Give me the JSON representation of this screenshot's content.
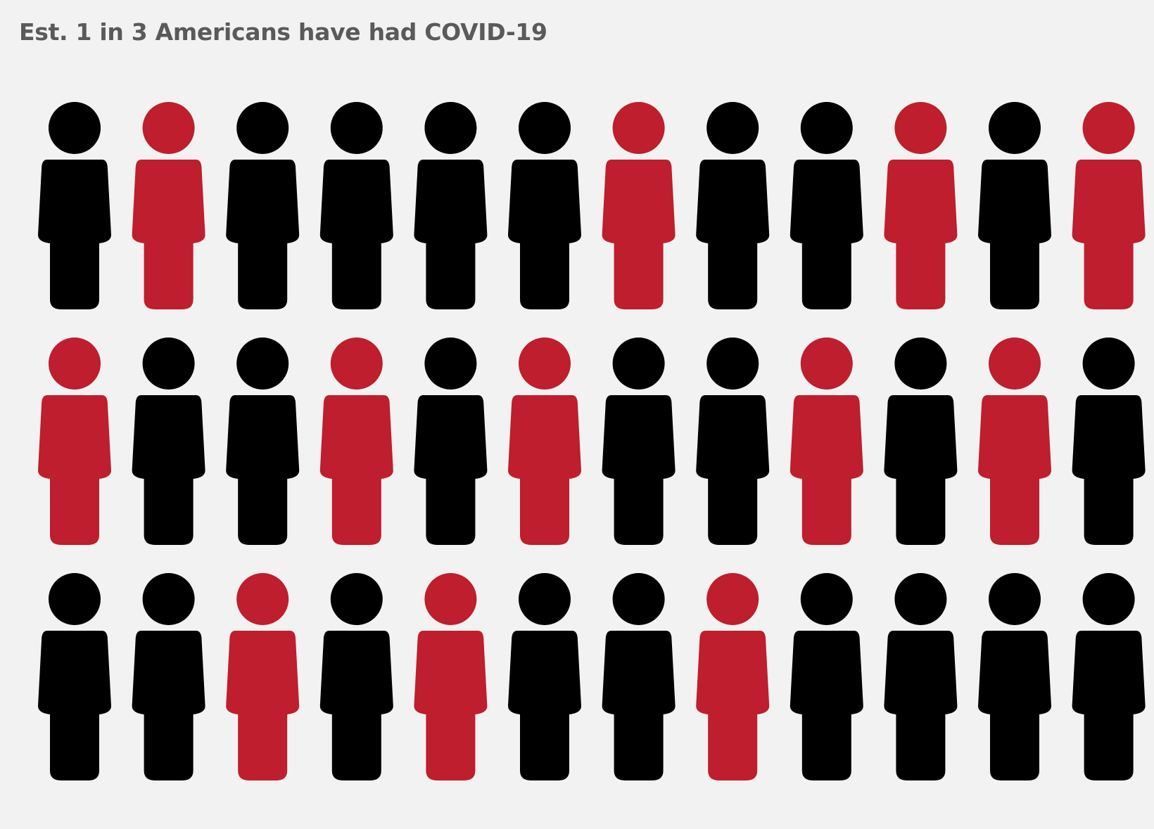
{
  "title": "Est. 1 in 3 Americans have had COVID-19",
  "colors": {
    "had_covid": "#be1e2d",
    "not_had_covid": "#000000",
    "background": "#f2f2f2"
  },
  "chart_data": {
    "type": "pictogram",
    "icon": "person-icon",
    "title": "Est. 1 in 3 Americans have had COVID-19",
    "rows": 3,
    "columns": 12,
    "total": 36,
    "highlighted_count": 12,
    "grid": [
      [
        0,
        1,
        0,
        0,
        0,
        0,
        1,
        0,
        0,
        1,
        0,
        1
      ],
      [
        1,
        0,
        0,
        1,
        0,
        1,
        0,
        0,
        1,
        0,
        1,
        0
      ],
      [
        0,
        0,
        1,
        0,
        1,
        0,
        0,
        1,
        0,
        0,
        0,
        0
      ]
    ]
  }
}
